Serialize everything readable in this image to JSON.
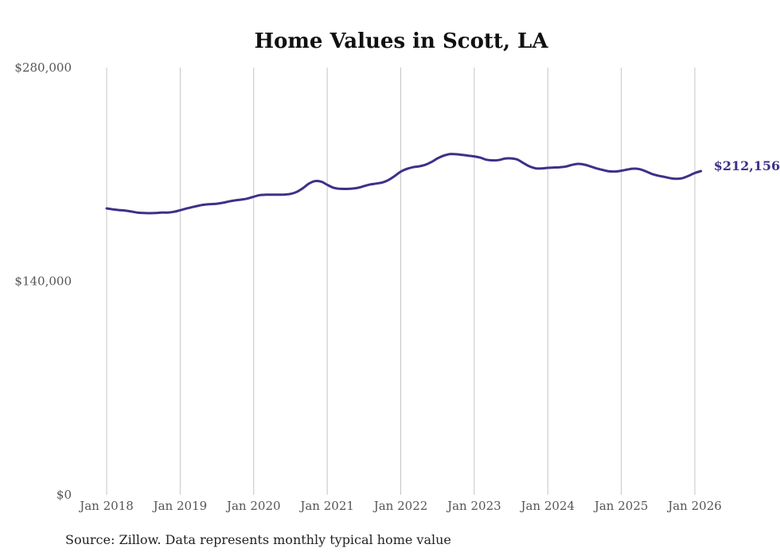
{
  "chart_data": {
    "type": "line",
    "title": "Home Values in Scott, LA",
    "xlabel": "",
    "ylabel": "",
    "ylim": [
      0,
      280000
    ],
    "yticks": [
      {
        "value": 0,
        "label": "$0"
      },
      {
        "value": 140000,
        "label": "$140,000"
      },
      {
        "value": 280000,
        "label": "$280,000"
      }
    ],
    "xticks": [
      "Jan 2018",
      "Jan 2019",
      "Jan 2020",
      "Jan 2021",
      "Jan 2022",
      "Jan 2023",
      "Jan 2024",
      "Jan 2025",
      "Jan 2026"
    ],
    "grid": "vertical",
    "line_color": "#3b3189",
    "series": [
      {
        "name": "Typical home value",
        "start": "Jan 2018",
        "frequency": "monthly",
        "values": [
          187700,
          187100,
          186600,
          186300,
          185700,
          185000,
          184700,
          184600,
          184700,
          185000,
          185000,
          185500,
          186500,
          187600,
          188600,
          189500,
          190200,
          190500,
          190800,
          191400,
          192300,
          193000,
          193500,
          194200,
          195400,
          196400,
          196700,
          196700,
          196700,
          196800,
          197200,
          198500,
          200900,
          203900,
          205600,
          205300,
          203200,
          201300,
          200600,
          200500,
          200700,
          201200,
          202300,
          203400,
          204000,
          204700,
          206300,
          208900,
          211800,
          213600,
          214700,
          215300,
          216300,
          218100,
          220500,
          222300,
          223300,
          223200,
          222800,
          222300,
          221800,
          221000,
          219600,
          219200,
          219400,
          220400,
          220500,
          219800,
          217500,
          215300,
          214000,
          213900,
          214300,
          214500,
          214700,
          215200,
          216300,
          216900,
          216400,
          215200,
          213900,
          212900,
          212000,
          211900,
          212400,
          213200,
          213800,
          213400,
          212000,
          210300,
          209200,
          208400,
          207500,
          207100,
          207600,
          209100,
          210900,
          212156
        ]
      }
    ],
    "end_label": "$212,156",
    "source": "Source: Zillow. Data represents monthly typical home value"
  }
}
